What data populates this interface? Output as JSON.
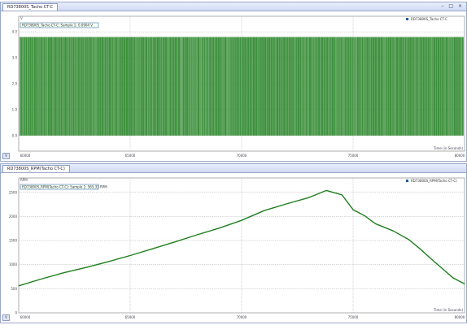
{
  "colors": {
    "series": "#1f7f1f",
    "grid": "#b5b5b5",
    "legend_box": "#1f5a9e"
  },
  "panels": [
    {
      "tab_label": "RD73800S_Tacho CT-C",
      "y_unit": "V",
      "legend_box": "RD73800S_Tacho CT-C: Sample 1:  0.0904 V",
      "legend_entry": "RD73800S_Tacho CT-C",
      "x_axis_label": "Time (in Seconds)",
      "corner_label": "V",
      "window_buttons": "– □ ×",
      "chart_data": {
        "type": "line",
        "series": [
          {
            "name": "RD73800S_Tacho CT-C",
            "values": []
          }
        ],
        "x_ticks": [
          "60000",
          "65000",
          "70000",
          "75000",
          "80000"
        ],
        "y_ticks": [
          "4.0",
          "3.0",
          "2.0",
          "1.0",
          "0.0"
        ],
        "xlim": [
          60000,
          80000
        ],
        "ylim": [
          -0.6,
          4.6
        ],
        "signal": {
          "low": 0.0,
          "high": 3.8,
          "style": "square-wave"
        }
      }
    },
    {
      "tab_label": "RD73800S_RPM(Tacho CT-C)",
      "y_unit": "RPM",
      "legend_box": "RD73800S_RPM(Tacho CT-C): Sample 1:  565.33 RPM",
      "legend_entry": "RD73800S_RPM(Tacho CT-C)",
      "x_axis_label": "Time (in Seconds)",
      "corner_label": "V",
      "window_buttons": "",
      "chart_data": {
        "type": "line",
        "x": [
          60000,
          61000,
          62000,
          63000,
          64000,
          65000,
          66000,
          67000,
          68000,
          69000,
          70000,
          71000,
          72000,
          73000,
          73800,
          74500,
          75000,
          75500,
          76000,
          76800,
          77500,
          78000,
          78500,
          79000,
          79500,
          80000
        ],
        "series": [
          {
            "name": "RD73800S_RPM(Tacho CT-C)",
            "values": [
              560,
              700,
              830,
              940,
              1060,
              1190,
              1330,
              1470,
              1620,
              1760,
              1920,
              2120,
              2260,
              2390,
              2540,
              2450,
              2140,
              2020,
              1850,
              1700,
              1520,
              1330,
              1120,
              920,
              720,
              600
            ]
          }
        ],
        "x_ticks": [
          "60000",
          "65000",
          "70000",
          "75000",
          "80000"
        ],
        "y_ticks": [
          "2500",
          "2000",
          "1500",
          "1000",
          "500",
          "0"
        ],
        "xlim": [
          60000,
          80000
        ],
        "ylim": [
          0,
          2800
        ]
      }
    }
  ]
}
